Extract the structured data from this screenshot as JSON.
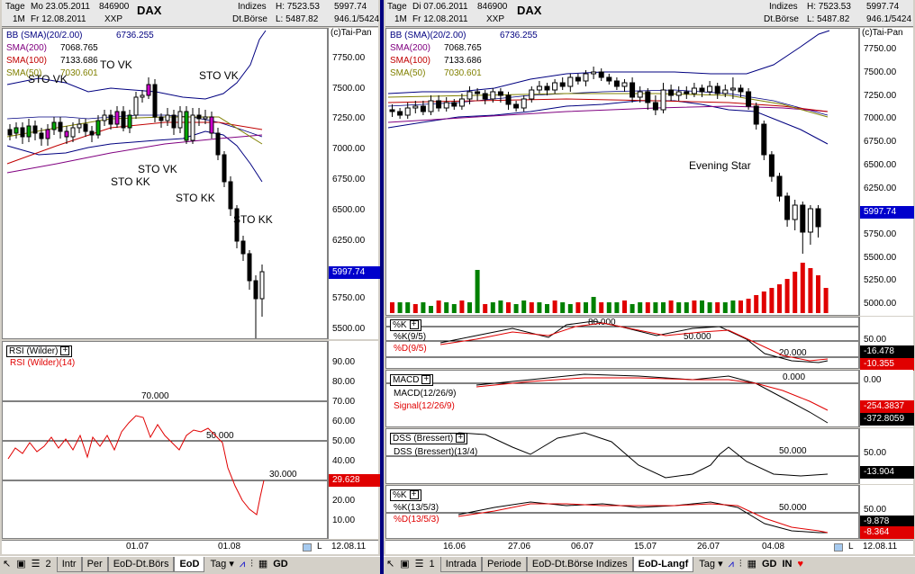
{
  "left": {
    "header": {
      "row1": {
        "period": "Tage",
        "date": "Mo 23.05.2011",
        "code": "846900",
        "symbol": "DAX",
        "market": "Indizes",
        "high": "H: 7523.53",
        "last": "5997.74"
      },
      "row2": {
        "range": "1M",
        "date": "Fr 12.08.2011",
        "exchange": "XXP",
        "venue": "Dt.Börse",
        "low": "L: 5487.82",
        "change": "946.1/5424"
      }
    },
    "legend": {
      "bb": "BB (SMA)(20/2.00)",
      "bb_val": "6736.255",
      "sma200": "SMA(200)",
      "sma200_val": "7068.765",
      "sma100": "SMA(100)",
      "sma100_val": "7133.686",
      "sma50": "SMA(50)",
      "sma50_val": "7030.601",
      "copyright": "(c)Tai-Pan"
    },
    "annotations": [
      "STO VK",
      "TO VK",
      "STO VK",
      "STO VK",
      "STO KK",
      "STO KK",
      "STO KK"
    ],
    "price_axis": [
      "7750.00",
      "7500.00",
      "7250.00",
      "7000.00",
      "6750.00",
      "6500.00",
      "6250.00",
      "6000.00",
      "5750.00",
      "5500.00"
    ],
    "price_box": "5997.74",
    "rsi": {
      "title": "RSI (Wilder)",
      "series": "RSI (Wilder)(14)",
      "levels": [
        "70.000",
        "50.000",
        "30.000"
      ],
      "axis": [
        "90.00",
        "80.00",
        "70.00",
        "60.00",
        "50.00",
        "40.00",
        "20.00",
        "10.00"
      ],
      "value_box": "29.628"
    },
    "dates": [
      "01.07",
      "01.08"
    ],
    "date_end": "12.08.11",
    "tabs": [
      "Intr",
      "Per",
      "EoD-Dt.Börs",
      "EoD"
    ],
    "toolbar": {
      "tag": "Tag",
      "gd": "GD",
      "fav": "2"
    }
  },
  "right": {
    "header": {
      "row1": {
        "period": "Tage",
        "date": "Di 07.06.2011",
        "code": "846900",
        "symbol": "DAX",
        "market": "Indizes",
        "high": "H: 7523.53",
        "last": "5997.74"
      },
      "row2": {
        "range": "1M",
        "date": "Fr 12.08.2011",
        "exchange": "XXP",
        "venue": "Dt.Börse",
        "low": "L: 5487.82",
        "change": "946.1/5424"
      }
    },
    "legend": {
      "bb": "BB (SMA)(20/2.00)",
      "bb_val": "6736.255",
      "sma200": "SMA(200)",
      "sma200_val": "7068.765",
      "sma100": "SMA(100)",
      "sma100_val": "7133.686",
      "sma50": "SMA(50)",
      "sma50_val": "7030.601",
      "copyright": "(c)Tai-Pan"
    },
    "annotation": "Evening Star",
    "price_axis": [
      "7750.00",
      "7500.00",
      "7250.00",
      "7000.00",
      "6750.00",
      "6500.00",
      "6250.00",
      "5750.00",
      "5500.00",
      "5250.00",
      "5000.00"
    ],
    "price_box": "5997.74",
    "stoch1": {
      "title": "%K",
      "k": "%K(9/5)",
      "d": "%D(9/5)",
      "levels": [
        "80.000",
        "50.000",
        "20.000"
      ],
      "axis": "50.00",
      "k_val": "-16.478",
      "d_val": "-10.355"
    },
    "macd": {
      "title": "MACD",
      "macd": "MACD(12/26/9)",
      "signal": "Signal(12/26/9)",
      "level": "0.000",
      "axis": "0.00",
      "m_val": "-254.3837",
      "s_val": "-372.8059"
    },
    "dss": {
      "title": "DSS (Bressert)",
      "series": "DSS (Bressert)(13/4)",
      "level": "50.000",
      "axis": "50.00",
      "val": "-13.904"
    },
    "stoch2": {
      "title": "%K",
      "k": "%K(13/5/3)",
      "d": "%D(13/5/3)",
      "level": "50.000",
      "axis": "50.00",
      "k_val": "-9.878",
      "d_val": "-8.364"
    },
    "dates": [
      "16.06",
      "27.06",
      "06.07",
      "15.07",
      "26.07",
      "04.08"
    ],
    "date_end": "12.08.11",
    "tabs": [
      "Intrada",
      "Periode",
      "EoD-Dt.Börse Indizes",
      "EoD-Langf"
    ],
    "toolbar": {
      "tag": "Tag",
      "gd": "GD",
      "in": "IN",
      "fav": "1"
    }
  },
  "colors": {
    "bb": "#000080",
    "sma200": "#800080",
    "sma100": "#c00000",
    "sma50": "#808000",
    "rsi": "#e00000",
    "pricebox": "#0000cc",
    "up": "#008000",
    "down": "#e00000"
  }
}
